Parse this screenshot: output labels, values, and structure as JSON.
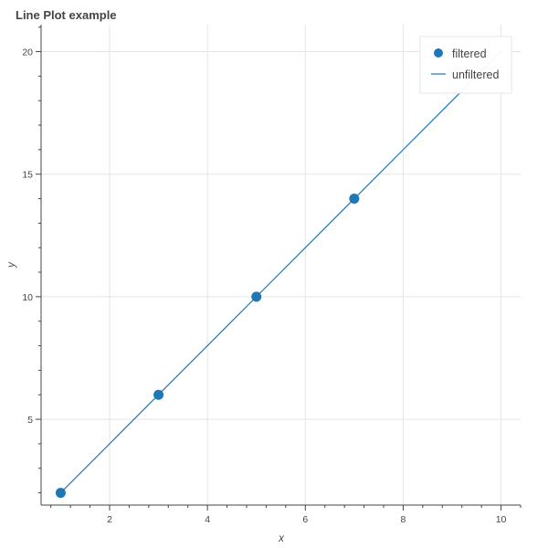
{
  "chart_data": {
    "type": "line",
    "title": "Line Plot example",
    "xlabel": "x",
    "ylabel": "y",
    "xlim": [
      0.6,
      10.4
    ],
    "ylim": [
      1.5,
      21.1
    ],
    "xticks": [
      2,
      4,
      6,
      8,
      10
    ],
    "yticks": [
      5,
      10,
      15,
      20
    ],
    "grid": true,
    "legend_position": "top-right",
    "series": [
      {
        "name": "filtered",
        "kind": "scatter",
        "color": "#1f77b4",
        "x": [
          1,
          3,
          5,
          7
        ],
        "y": [
          2,
          6,
          10,
          14
        ]
      },
      {
        "name": "unfiltered",
        "kind": "line",
        "color": "#1f77b4",
        "x": [
          1,
          2,
          3,
          4,
          5,
          6,
          7,
          8,
          9,
          10
        ],
        "y": [
          2,
          4,
          6,
          8,
          10,
          12,
          14,
          16,
          18,
          20
        ]
      }
    ]
  }
}
